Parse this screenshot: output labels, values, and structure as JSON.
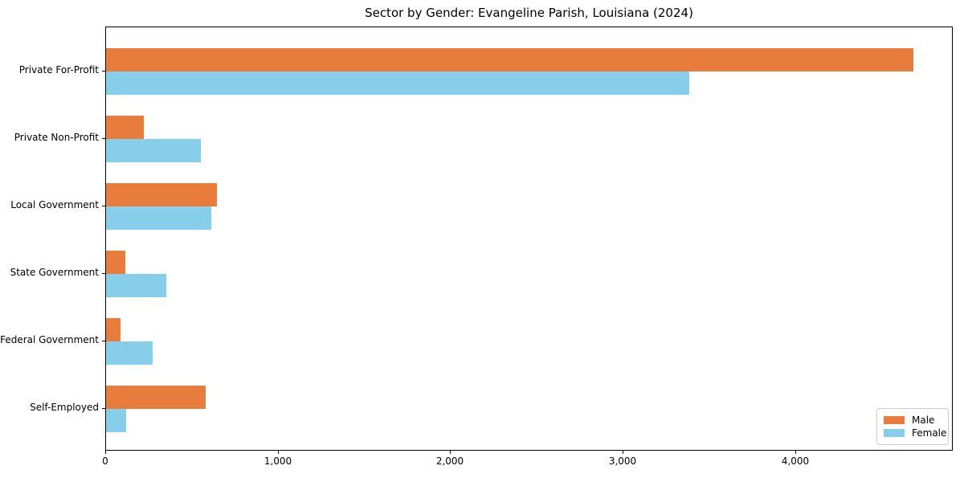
{
  "chart_data": {
    "type": "bar",
    "orientation": "horizontal",
    "title": "Sector by Gender: Evangeline Parish, Louisiana (2024)",
    "xlabel": "",
    "ylabel": "",
    "categories": [
      "Private For-Profit",
      "Private Non-Profit",
      "Local Government",
      "State Government",
      "Federal Government",
      "Self-Employed"
    ],
    "series": [
      {
        "name": "Male",
        "color": "#E87C3D",
        "values": [
          4680,
          220,
          645,
          110,
          85,
          580
        ]
      },
      {
        "name": "Female",
        "color": "#87CEEB",
        "values": [
          3380,
          550,
          610,
          350,
          270,
          115
        ]
      }
    ],
    "xlim": [
      0,
      4915
    ],
    "xticks": {
      "values": [
        0,
        1000,
        2000,
        3000,
        4000
      ],
      "labels": [
        "0",
        "1,000",
        "2,000",
        "3,000",
        "4,000"
      ]
    },
    "legend": {
      "position": "lower right",
      "entries": [
        "Male",
        "Female"
      ]
    },
    "grid": false,
    "background_color": "#ffffff",
    "text_color": "#000000"
  }
}
